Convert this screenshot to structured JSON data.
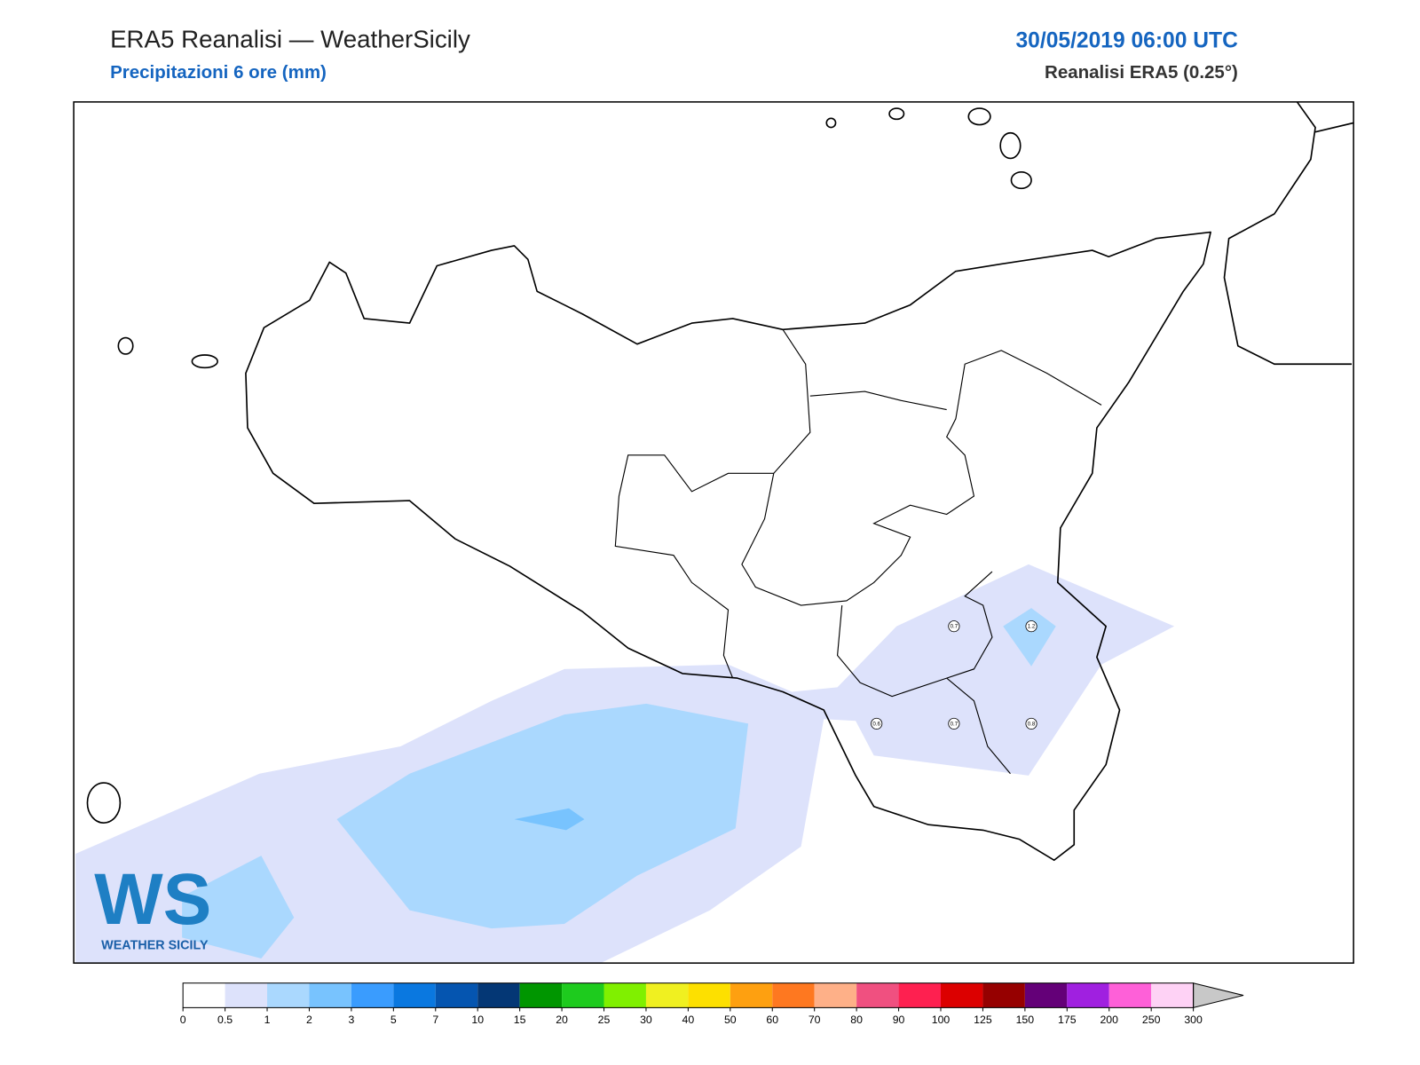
{
  "header": {
    "title": "ERA5 Reanalisi — WeatherSicily",
    "subtitle": "Precipitazioni 6 ore (mm)",
    "valid_time": "30/05/2019 06:00 UTC",
    "model": "Reanalisi ERA5 (0.25°)"
  },
  "logo": {
    "mark": "WS",
    "name": "WEATHER SICILY"
  },
  "point_values": [
    0.7,
    1.2,
    0.6,
    0.7,
    0.8
  ],
  "colorbar": {
    "ticks": [
      0,
      0.5,
      1,
      2,
      3,
      5,
      7,
      10,
      15,
      20,
      25,
      30,
      40,
      50,
      60,
      70,
      80,
      90,
      100,
      125,
      150,
      175,
      200,
      250,
      300
    ],
    "colors": [
      "#ffffff",
      "#dde2fb",
      "#aad8fe",
      "#78c3fe",
      "#3a9cfe",
      "#0a78e0",
      "#0555b0",
      "#043775",
      "#009600",
      "#1ecb1e",
      "#80f000",
      "#f0f020",
      "#fde000",
      "#fea010",
      "#fe7820",
      "#feb088",
      "#f05080",
      "#fe2050",
      "#dc0000",
      "#960000",
      "#640078",
      "#a020e0",
      "#fe60d8",
      "#fed2f5"
    ],
    "extend_color": "#c8c8c8"
  }
}
